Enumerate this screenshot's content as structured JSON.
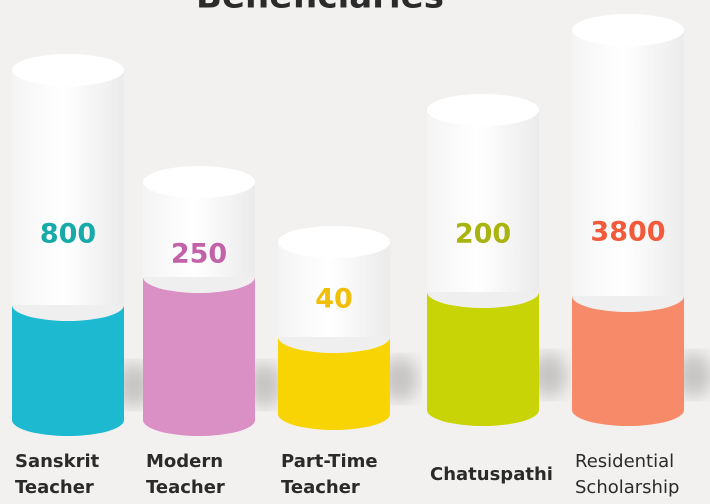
{
  "title": "Beneficiaries",
  "items": [
    {
      "value": "800",
      "label": [
        "Sanskrit",
        "Teacher"
      ]
    },
    {
      "value": "250",
      "label": [
        "Modern",
        "Teacher"
      ]
    },
    {
      "value": "40",
      "label": [
        "Part-Time",
        "Teacher"
      ]
    },
    {
      "value": "200",
      "label": [
        "Chatuspathi"
      ]
    },
    {
      "value": "3800",
      "label": [
        "Residential",
        "Scholarship"
      ]
    }
  ]
}
